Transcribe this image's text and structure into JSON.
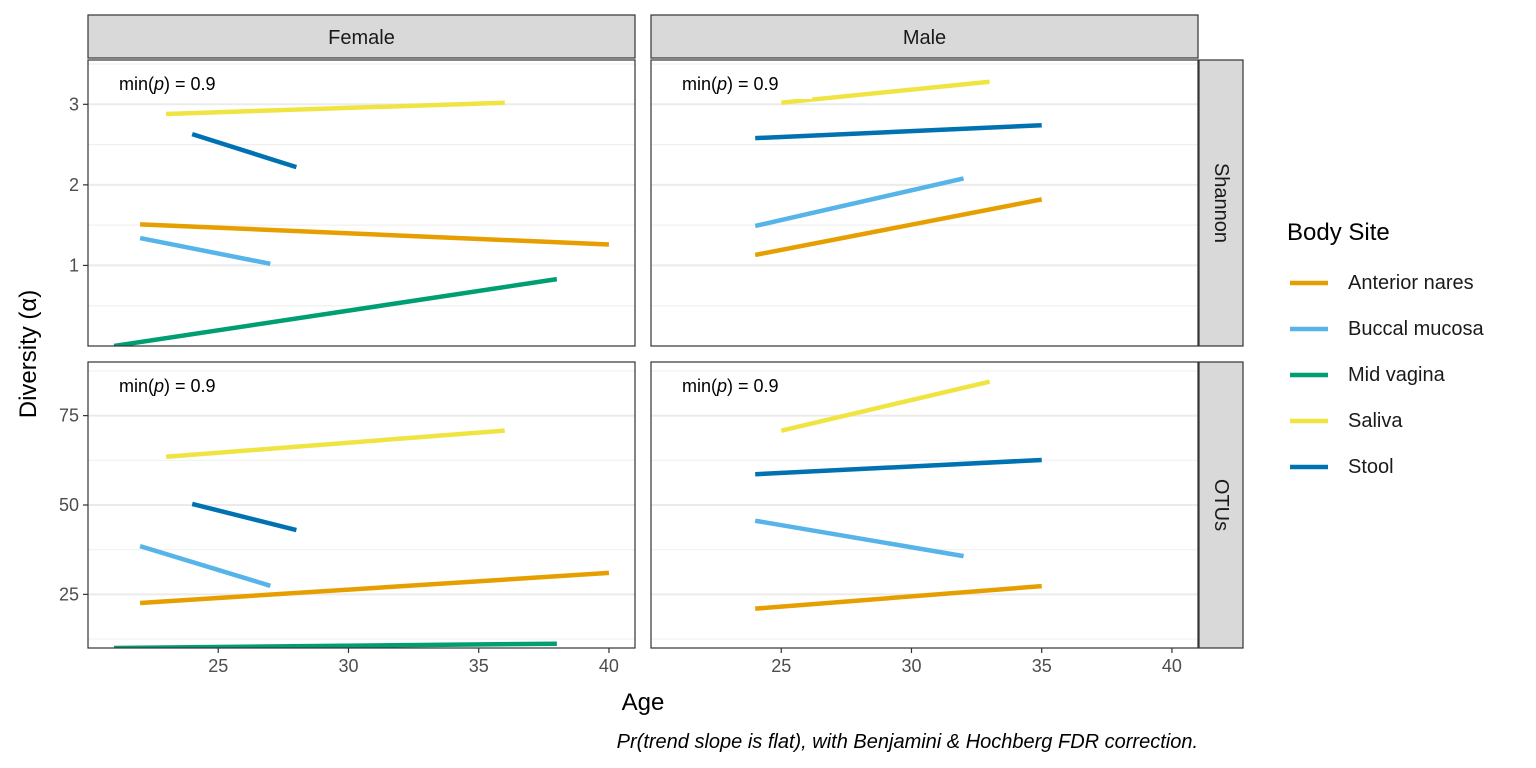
{
  "chart_data": {
    "type": "line",
    "xlabel": "Age",
    "ylabel": "Diversity (α)",
    "caption": "Pr(trend slope is flat), with Benjamini & Hochberg FDR correction.",
    "legend": {
      "title": "Body Site",
      "position": "right",
      "entries": [
        {
          "name": "Anterior nares",
          "color": "#E69F00"
        },
        {
          "name": "Buccal mucosa",
          "color": "#56B4E9"
        },
        {
          "name": "Mid vagina",
          "color": "#009E73"
        },
        {
          "name": "Saliva",
          "color": "#F0E442"
        },
        {
          "name": "Stool",
          "color": "#0072B2"
        }
      ]
    },
    "x_ticks": [
      25,
      30,
      35,
      40
    ],
    "xlim": [
      20,
      41
    ],
    "columns": [
      "Female",
      "Male"
    ],
    "rows": [
      {
        "label": "Shannon",
        "ylim": [
          0,
          3.55
        ],
        "y_ticks": [
          1,
          2,
          3
        ]
      },
      {
        "label": "OTUs",
        "ylim": [
          10,
          90
        ],
        "y_ticks": [
          25,
          50,
          75
        ]
      }
    ],
    "grid": true,
    "panels": [
      {
        "column": "Female",
        "row": "Shannon",
        "annotation": "min(p) = 0.9",
        "series": [
          {
            "name": "Saliva",
            "x": [
              23,
              36
            ],
            "y": [
              2.88,
              3.02
            ]
          },
          {
            "name": "Stool",
            "x": [
              24,
              28
            ],
            "y": [
              2.63,
              2.22
            ]
          },
          {
            "name": "Anterior nares",
            "x": [
              22,
              40
            ],
            "y": [
              1.51,
              1.26
            ]
          },
          {
            "name": "Buccal mucosa",
            "x": [
              22,
              27
            ],
            "y": [
              1.34,
              1.02
            ]
          },
          {
            "name": "Mid vagina",
            "x": [
              21,
              38
            ],
            "y": [
              0.0,
              0.83
            ]
          }
        ]
      },
      {
        "column": "Male",
        "row": "Shannon",
        "annotation": "min(p) = 0.9",
        "series": [
          {
            "name": "Saliva",
            "x": [
              25,
              33
            ],
            "y": [
              3.02,
              3.28
            ]
          },
          {
            "name": "Stool",
            "x": [
              24,
              35
            ],
            "y": [
              2.58,
              2.74
            ]
          },
          {
            "name": "Buccal mucosa",
            "x": [
              24,
              32
            ],
            "y": [
              1.49,
              2.08
            ]
          },
          {
            "name": "Anterior nares",
            "x": [
              24,
              35
            ],
            "y": [
              1.13,
              1.82
            ]
          }
        ]
      },
      {
        "column": "Female",
        "row": "OTUs",
        "annotation": "min(p) = 0.9",
        "series": [
          {
            "name": "Saliva",
            "x": [
              23,
              36
            ],
            "y": [
              63.5,
              70.8
            ]
          },
          {
            "name": "Stool",
            "x": [
              24,
              28
            ],
            "y": [
              50.3,
              43.0
            ]
          },
          {
            "name": "Buccal mucosa",
            "x": [
              22,
              27
            ],
            "y": [
              38.5,
              27.4
            ]
          },
          {
            "name": "Anterior nares",
            "x": [
              22,
              40
            ],
            "y": [
              22.6,
              31.0
            ]
          },
          {
            "name": "Mid vagina",
            "x": [
              21,
              38
            ],
            "y": [
              10.0,
              11.2
            ]
          }
        ]
      },
      {
        "column": "Male",
        "row": "OTUs",
        "annotation": "min(p) = 0.9",
        "series": [
          {
            "name": "Saliva",
            "x": [
              25,
              33
            ],
            "y": [
              70.8,
              84.5
            ]
          },
          {
            "name": "Stool",
            "x": [
              24,
              35
            ],
            "y": [
              58.6,
              62.6
            ]
          },
          {
            "name": "Buccal mucosa",
            "x": [
              24,
              32
            ],
            "y": [
              45.6,
              35.7
            ]
          },
          {
            "name": "Anterior nares",
            "x": [
              24,
              35
            ],
            "y": [
              21.0,
              27.3
            ]
          }
        ]
      }
    ]
  }
}
